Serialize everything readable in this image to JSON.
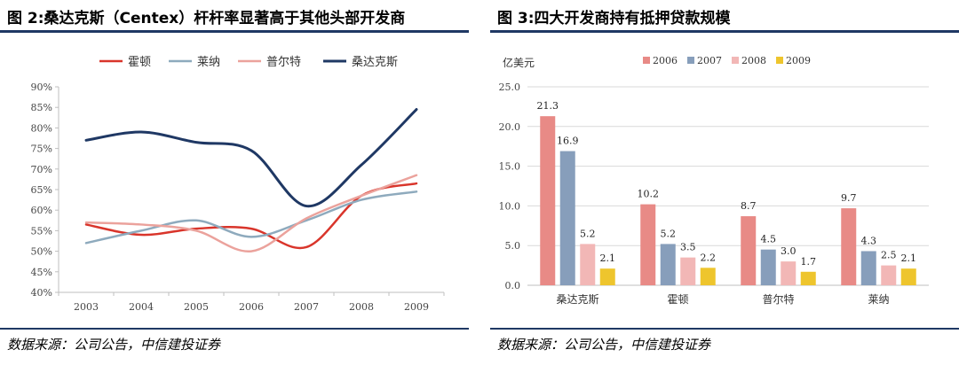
{
  "left_figure": {
    "title": "图 2:桑达克斯（Centex）杆杆率显著高于其他头部开发商",
    "source": "数据来源：公司公告，中信建投证券"
  },
  "right_figure": {
    "title": "图 3:四大开发商持有抵押贷款规模",
    "source": "数据来源：公司公告，中信建投证券"
  },
  "chart_data": [
    {
      "type": "line",
      "title": "图 2:桑达克斯（Centex）杆杆率显著高于其他头部开发商",
      "x": [
        "2003",
        "2004",
        "2005",
        "2006",
        "2007",
        "2008",
        "2009"
      ],
      "y_ticks": [
        "40%",
        "45%",
        "50%",
        "55%",
        "60%",
        "65%",
        "70%",
        "75%",
        "80%",
        "85%",
        "90%"
      ],
      "ylim": [
        40,
        90
      ],
      "legend_position": "top",
      "series": [
        {
          "name": "霍顿",
          "color": "#d9352b",
          "values": [
            56.5,
            54,
            55.5,
            55.5,
            51,
            63.5,
            66.5
          ]
        },
        {
          "name": "莱纳",
          "color": "#8eaabd",
          "values": [
            52,
            55,
            57.5,
            53.5,
            57.5,
            62.5,
            64.5
          ]
        },
        {
          "name": "普尔特",
          "color": "#eba29c",
          "values": [
            57,
            56.5,
            55,
            50,
            58,
            63.5,
            68.5
          ]
        },
        {
          "name": "桑达克斯",
          "color": "#1f3864",
          "values": [
            77,
            79,
            76.5,
            74.5,
            61,
            71,
            84.5
          ]
        }
      ]
    },
    {
      "type": "bar",
      "title": "图 3:四大开发商持有抵押贷款规模",
      "ylabel": "亿美元",
      "categories": [
        "桑达克斯",
        "霍顿",
        "普尔特",
        "莱纳"
      ],
      "y_ticks": [
        "0.0",
        "5.0",
        "10.0",
        "15.0",
        "20.0",
        "25.0"
      ],
      "ylim": [
        0,
        25
      ],
      "legend_position": "top",
      "series": [
        {
          "name": "2006",
          "color": "#e88a86",
          "values": [
            21.3,
            10.2,
            8.7,
            9.7
          ],
          "labels": [
            "21.3",
            "10.2",
            "8.7",
            "9.7"
          ]
        },
        {
          "name": "2007",
          "color": "#879ebb",
          "values": [
            16.9,
            5.2,
            4.5,
            4.3
          ],
          "labels": [
            "16.9",
            "5.2",
            "4.5",
            "4.3"
          ]
        },
        {
          "name": "2008",
          "color": "#f2b7b6",
          "values": [
            5.2,
            3.5,
            3.0,
            2.5
          ],
          "labels": [
            "5.2",
            "3.5",
            "3.0",
            "2.5"
          ]
        },
        {
          "name": "2009",
          "color": "#eec52d",
          "values": [
            2.1,
            2.2,
            1.7,
            2.1
          ],
          "labels": [
            "2.1",
            "2.2",
            "1.7",
            "2.1"
          ]
        }
      ]
    }
  ]
}
